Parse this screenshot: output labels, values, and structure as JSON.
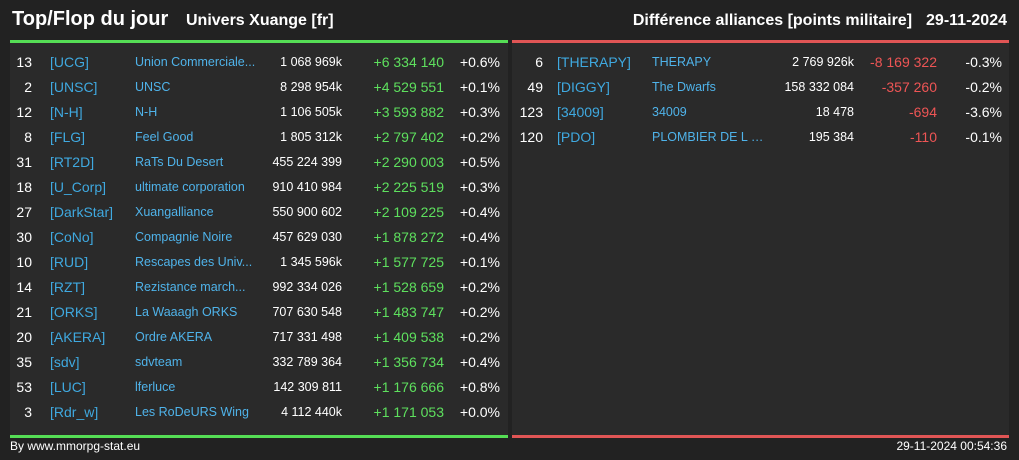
{
  "header": {
    "title": "Top/Flop du jour",
    "subtitle": "Univers Xuange [fr]",
    "right_title": "Différence alliances [points militaire]",
    "date": "29-11-2024"
  },
  "colors": {
    "top_accent": "#55dd55",
    "flop_accent": "#e05555",
    "tag": "#3fa9e0"
  },
  "top": [
    {
      "rank": "13",
      "tag": "[UCG]",
      "name": "Union Commerciale...",
      "points": "1 068 969k",
      "diff": "+6 334 140",
      "pct": "+0.6%"
    },
    {
      "rank": "2",
      "tag": "[UNSC]",
      "name": "UNSC",
      "points": "8 298 954k",
      "diff": "+4 529 551",
      "pct": "+0.1%"
    },
    {
      "rank": "12",
      "tag": "[N-H]",
      "name": "N-H",
      "points": "1 106 505k",
      "diff": "+3 593 882",
      "pct": "+0.3%"
    },
    {
      "rank": "8",
      "tag": "[FLG]",
      "name": "Feel Good",
      "points": "1 805 312k",
      "diff": "+2 797 402",
      "pct": "+0.2%"
    },
    {
      "rank": "31",
      "tag": "[RT2D]",
      "name": "RaTs Du Desert",
      "points": "455 224 399",
      "diff": "+2 290 003",
      "pct": "+0.5%"
    },
    {
      "rank": "18",
      "tag": "[U_Corp]",
      "name": "ultimate corporation",
      "points": "910 410 984",
      "diff": "+2 225 519",
      "pct": "+0.3%"
    },
    {
      "rank": "27",
      "tag": "[DarkStar]",
      "name": "Xuangalliance",
      "points": "550 900 602",
      "diff": "+2 109 225",
      "pct": "+0.4%"
    },
    {
      "rank": "30",
      "tag": "[CoNo]",
      "name": "Compagnie Noire",
      "points": "457 629 030",
      "diff": "+1 878 272",
      "pct": "+0.4%"
    },
    {
      "rank": "10",
      "tag": "[RUD]",
      "name": "Rescapes des Univ...",
      "points": "1 345 596k",
      "diff": "+1 577 725",
      "pct": "+0.1%"
    },
    {
      "rank": "14",
      "tag": "[RZT]",
      "name": "Rezistance march...",
      "points": "992 334 026",
      "diff": "+1 528 659",
      "pct": "+0.2%"
    },
    {
      "rank": "21",
      "tag": "[ORKS]",
      "name": "La Waaagh ORKS",
      "points": "707 630 548",
      "diff": "+1 483 747",
      "pct": "+0.2%"
    },
    {
      "rank": "20",
      "tag": "[AKERA]",
      "name": "Ordre AKERA",
      "points": "717 331 498",
      "diff": "+1 409 538",
      "pct": "+0.2%"
    },
    {
      "rank": "35",
      "tag": "[sdv]",
      "name": "sdvteam",
      "points": "332 789 364",
      "diff": "+1 356 734",
      "pct": "+0.4%"
    },
    {
      "rank": "53",
      "tag": "[LUC]",
      "name": "lferluce",
      "points": "142 309 811",
      "diff": "+1 176 666",
      "pct": "+0.8%"
    },
    {
      "rank": "3",
      "tag": "[Rdr_w]",
      "name": "Les RoDeURS Wing",
      "points": "4 112 440k",
      "diff": "+1 171 053",
      "pct": "+0.0%"
    }
  ],
  "flop": [
    {
      "rank": "6",
      "tag": "[THERAPY]",
      "name": "THERAPY",
      "points": "2 769 926k",
      "diff": "-8 169 322",
      "pct": "-0.3%"
    },
    {
      "rank": "49",
      "tag": "[DIGGY]",
      "name": "The Dwarfs",
      "points": "158 332 084",
      "diff": "-357 260",
      "pct": "-0.2%"
    },
    {
      "rank": "123",
      "tag": "[34009]",
      "name": "34009",
      "points": "18 478",
      "diff": "-694",
      "pct": "-3.6%"
    },
    {
      "rank": "120",
      "tag": "[PDO]",
      "name": "PLOMBIER DE L O...",
      "points": "195 384",
      "diff": "-110",
      "pct": "-0.1%"
    }
  ],
  "footer": {
    "credit": "By www.mmorpg-stat.eu",
    "timestamp": "29-11-2024 00:54:36"
  }
}
